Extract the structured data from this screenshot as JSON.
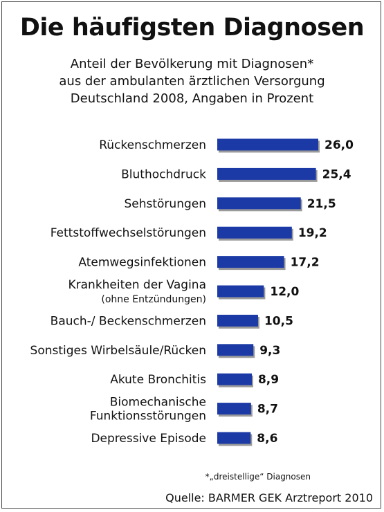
{
  "title": "Die häufigsten Diagnosen",
  "subtitle": [
    "Anteil der Bevölkerung mit Diagnosen*",
    "aus der ambulanten ärztlichen Versorgung",
    "Deutschland 2008, Angaben in Prozent"
  ],
  "footnote": "*„dreistellige“ Diagnosen",
  "source": "Quelle: BARMER GEK Arztreport 2010",
  "colors": {
    "bar": "#1c3aa6",
    "bar_shadow": "#9a9a9a"
  },
  "chart_data": {
    "type": "bar",
    "orientation": "horizontal",
    "title": "Die häufigsten Diagnosen",
    "xlabel": "",
    "ylabel": "",
    "grid": false,
    "legend": "none",
    "xlim": [
      0,
      26
    ],
    "categories": [
      [
        "Rückenschmerzen"
      ],
      [
        "Bluthochdruck"
      ],
      [
        "Sehstörungen"
      ],
      [
        "Fettstoffwechselstörungen"
      ],
      [
        "Atemwegsinfektionen"
      ],
      [
        "Krankheiten der Vagina",
        "(ohne Entzündungen)"
      ],
      [
        "Bauch-/ Beckenschmerzen"
      ],
      [
        "Sonstiges Wirbelsäule/Rücken"
      ],
      [
        "Akute Bronchitis"
      ],
      [
        "Biomechanische",
        "Funktionsstörungen"
      ],
      [
        "Depressive Episode"
      ]
    ],
    "values": [
      26.0,
      25.4,
      21.5,
      19.2,
      17.2,
      12.0,
      10.5,
      9.3,
      8.9,
      8.7,
      8.6
    ],
    "value_labels": [
      "26,0",
      "25,4",
      "21,5",
      "19,2",
      "17,2",
      "12,0",
      "10,5",
      "9,3",
      "8,9",
      "8,7",
      "8,6"
    ]
  }
}
